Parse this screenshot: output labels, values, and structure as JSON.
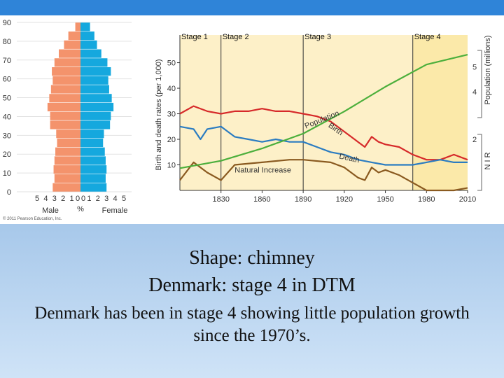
{
  "captions": {
    "line1": "Shape: chimney",
    "line2": "Denmark: stage 4 in DTM",
    "line3": "Denmark has been in stage 4 showing little population growth since the 1970’s."
  },
  "colors": {
    "male": "#f4936c",
    "female": "#15a8de",
    "population": "#4caf3c",
    "birth": "#d62a2a",
    "death": "#2b7cc1",
    "natural_increase": "#8a5a20",
    "chart_bg": "#fdf0c8",
    "stage4_bg": "#fbe9a9"
  },
  "chart_data": [
    {
      "type": "bar",
      "orientation": "horizontal",
      "subtype": "population-pyramid",
      "categories": [
        "0",
        "5",
        "10",
        "15",
        "20",
        "25",
        "30",
        "35",
        "40",
        "45",
        "50",
        "55",
        "60",
        "65",
        "70",
        "75",
        "80",
        "85",
        "90"
      ],
      "series": [
        {
          "name": "Male",
          "values": [
            3.2,
            3.0,
            3.1,
            3.0,
            2.9,
            2.7,
            2.8,
            3.5,
            3.5,
            3.8,
            3.6,
            3.4,
            3.2,
            3.3,
            3.0,
            2.5,
            1.9,
            1.4,
            0.6
          ]
        },
        {
          "name": "Female",
          "values": [
            3.0,
            2.9,
            3.0,
            2.9,
            2.8,
            2.6,
            2.7,
            3.4,
            3.5,
            3.8,
            3.6,
            3.3,
            3.2,
            3.5,
            3.1,
            2.4,
            1.9,
            1.6,
            1.1
          ]
        }
      ],
      "y_ticks": [
        "0",
        "10",
        "20",
        "30",
        "40",
        "50",
        "60",
        "70",
        "80",
        "90"
      ],
      "x_ticks": [
        "5",
        "4",
        "3",
        "2",
        "1",
        "0",
        "0",
        "1",
        "2",
        "3",
        "4",
        "5"
      ],
      "xlabel_left": "Male",
      "xlabel_center": "%",
      "xlabel_right": "Female",
      "xlim": [
        -5,
        5
      ],
      "ylim": [
        0,
        90
      ],
      "copyright": "© 2011 Pearson Education, Inc."
    },
    {
      "type": "line",
      "x": [
        1800,
        1830,
        1860,
        1890,
        1920,
        1950,
        1980,
        2010
      ],
      "stages": [
        {
          "label": "Stage 1",
          "start": 1800,
          "end": 1830
        },
        {
          "label": "Stage 2",
          "start": 1830,
          "end": 1890
        },
        {
          "label": "Stage 3",
          "start": 1890,
          "end": 1970
        },
        {
          "label": "Stage 4",
          "start": 1970,
          "end": 2010
        }
      ],
      "series": [
        {
          "name": "Birth",
          "x": [
            1800,
            1810,
            1820,
            1830,
            1840,
            1850,
            1860,
            1870,
            1880,
            1890,
            1900,
            1910,
            1920,
            1930,
            1935,
            1940,
            1945,
            1950,
            1960,
            1970,
            1980,
            1990,
            2000,
            2010
          ],
          "values": [
            30,
            33,
            31,
            30,
            31,
            31,
            32,
            31,
            31,
            30,
            29,
            27,
            23,
            19,
            17,
            21,
            19,
            18,
            17,
            14,
            12,
            12,
            14,
            12
          ]
        },
        {
          "name": "Death",
          "x": [
            1800,
            1810,
            1815,
            1820,
            1830,
            1840,
            1850,
            1860,
            1870,
            1880,
            1890,
            1900,
            1910,
            1920,
            1930,
            1940,
            1950,
            1960,
            1970,
            1980,
            1990,
            2000,
            2010
          ],
          "values": [
            25,
            24,
            20,
            24,
            25,
            21,
            20,
            19,
            20,
            19,
            19,
            17,
            15,
            14,
            12,
            11,
            10,
            10,
            10,
            11,
            12,
            11,
            11
          ]
        },
        {
          "name": "Natural Increase",
          "x": [
            1800,
            1810,
            1820,
            1830,
            1840,
            1860,
            1880,
            1890,
            1910,
            1920,
            1930,
            1935,
            1940,
            1945,
            1950,
            1960,
            1970,
            1980,
            1990,
            2000,
            2010
          ],
          "values": [
            4,
            11,
            7,
            4,
            10,
            11,
            12,
            12,
            11,
            9,
            5,
            4,
            9,
            7,
            8,
            6,
            3,
            0,
            0,
            0,
            1
          ]
        },
        {
          "name": "Population",
          "x": [
            1800,
            1830,
            1860,
            1890,
            1920,
            1950,
            1980,
            2010
          ],
          "values": [
            0.9,
            1.2,
            1.7,
            2.3,
            3.2,
            4.2,
            5.1,
            5.5
          ],
          "axis": "right"
        }
      ],
      "ylabel": "Birth and death rates (per 1,000)",
      "ylabel_right": "Population (millions)",
      "right_bracket_label": "N I R",
      "y_ticks": [
        "10",
        "20",
        "30",
        "40",
        "50"
      ],
      "y_right_ticks": [
        "2",
        "4",
        "5"
      ],
      "x_ticks": [
        "1830",
        "1860",
        "1890",
        "1920",
        "1950",
        "1980",
        "2010"
      ],
      "xlim": [
        1800,
        2010
      ],
      "ylim": [
        0,
        57
      ]
    }
  ]
}
